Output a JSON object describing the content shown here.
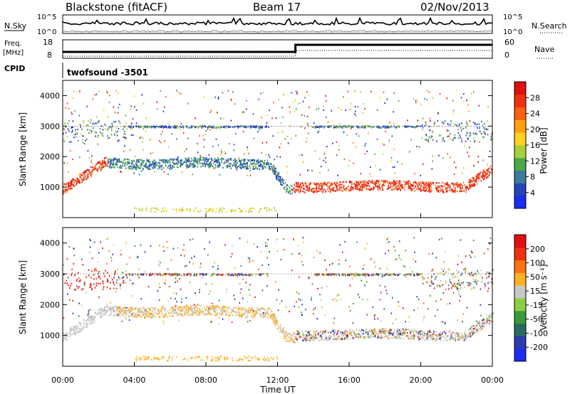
{
  "header": {
    "station": "Blackstone (fitACF)",
    "beam": "Beam 17",
    "date": "02/Nov/2013"
  },
  "noise_panel": {
    "left_label": "N.Sky",
    "right_label": "N.Search",
    "left_ticks": [
      "10^5",
      "10^0"
    ],
    "right_ticks": [
      "10^5",
      "10^0"
    ]
  },
  "freq_panel": {
    "left_label_1": "Freq.",
    "left_label_2": "[MHz]",
    "left_ticks": [
      "18",
      "8"
    ],
    "right_ticks": [
      "60",
      "0"
    ],
    "right_label": "Nave"
  },
  "cpid_panel": {
    "label": "CPID",
    "program": "twofsound  -3501"
  },
  "chart_data": [
    {
      "type": "heatmap",
      "title": "Power",
      "ylabel": "Slant Range [km]",
      "yticks": [
        1000,
        2000,
        3000,
        4000
      ],
      "ylim": [
        0,
        4500
      ],
      "colorbar_label": "Power [dB]",
      "colorbar_ticks": [
        "4",
        "8",
        "12",
        "16",
        "20",
        "24",
        "28"
      ],
      "colorbar_colors": [
        "#1a2cf0",
        "#2445b8",
        "#3a7a9c",
        "#4aa84a",
        "#a6d03a",
        "#ffd020",
        "#ffa010",
        "#ff6010",
        "#f03010",
        "#e01010"
      ],
      "x_ticks": [
        "00:00",
        "04:00",
        "08:00",
        "12:00",
        "16:00",
        "20:00",
        "00:00"
      ],
      "xlim_hours": [
        0,
        24
      ]
    },
    {
      "type": "heatmap",
      "title": "Velocity",
      "ylabel": "Slant Range [km]",
      "yticks": [
        1000,
        2000,
        3000,
        4000
      ],
      "ylim": [
        0,
        4500
      ],
      "colorbar_label": "Velocity [m s⁻¹]",
      "colorbar_ticks": [
        "200",
        "100",
        "50",
        "15",
        "-15",
        "-50",
        "-100",
        "-200"
      ],
      "colorbar_colors": [
        "#1a2cf0",
        "#2a3ab0",
        "#2a6a60",
        "#3a9a3a",
        "#8ad040",
        "#c8c8c8",
        "#ffb020",
        "#ff7010",
        "#f03010",
        "#e01010"
      ],
      "x_ticks": [
        "00:00",
        "04:00",
        "08:00",
        "12:00",
        "16:00",
        "20:00",
        "00:00"
      ],
      "xlim_hours": [
        0,
        24
      ],
      "xlabel": "Time UT"
    }
  ]
}
